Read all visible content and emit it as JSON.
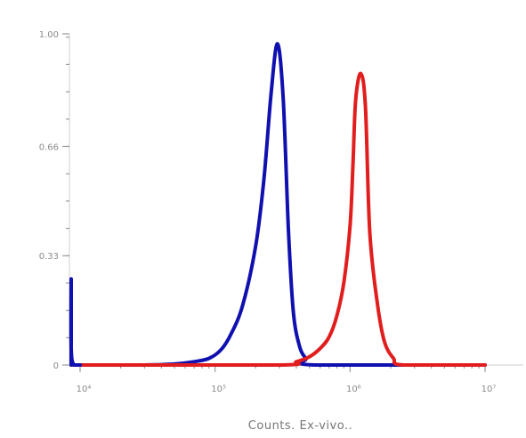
{
  "chart_data": {
    "type": "line",
    "xlabel": "Counts. Ex-vivo..",
    "ylabel": "",
    "x_scale": "log",
    "xlim": [
      10000,
      10000000
    ],
    "ylim": [
      0,
      1.0
    ],
    "x_ticks": [
      {
        "value": 10000,
        "label": "10⁴"
      },
      {
        "value": 100000,
        "label": "10⁵"
      },
      {
        "value": 1000000,
        "label": "10⁶"
      },
      {
        "value": 10000000,
        "label": "10⁷"
      }
    ],
    "y_ticks": [
      {
        "value": 0,
        "label": "0"
      },
      {
        "value": 0.33,
        "label": "0.33"
      },
      {
        "value": 0.66,
        "label": "0.66"
      },
      {
        "value": 1.0,
        "label": "1.00"
      }
    ],
    "grid": false,
    "series": [
      {
        "color": "#1010b0",
        "x": [
          8000,
          10000,
          12000,
          30000,
          50000,
          70000,
          90000,
          110000,
          130000,
          160000,
          200000,
          230000,
          260000,
          290000,
          320000,
          350000,
          380000,
          420000,
          470000,
          550000,
          10000000
        ],
        "y": [
          0,
          0,
          0,
          0,
          0.003,
          0.01,
          0.02,
          0.045,
          0.09,
          0.18,
          0.36,
          0.56,
          0.82,
          0.97,
          0.8,
          0.4,
          0.16,
          0.06,
          0.02,
          0,
          0
        ]
      },
      {
        "color": "#e11d1d",
        "x": [
          8000,
          10000,
          12000,
          300000,
          400000,
          500000,
          600000,
          700000,
          800000,
          900000,
          1000000,
          1050000,
          1100000,
          1200000,
          1300000,
          1400000,
          1600000,
          1800000,
          2100000,
          2500000,
          10000000
        ],
        "y": [
          0,
          0,
          0,
          0,
          0.01,
          0.025,
          0.05,
          0.085,
          0.15,
          0.25,
          0.42,
          0.6,
          0.8,
          0.88,
          0.78,
          0.4,
          0.18,
          0.07,
          0.02,
          0,
          0
        ]
      },
      {
        "color": "#1010b0",
        "x": [
          8000,
          8100,
          8500,
          9000,
          10000
        ],
        "y": [
          0,
          0.26,
          0.05,
          0,
          0
        ]
      }
    ]
  }
}
